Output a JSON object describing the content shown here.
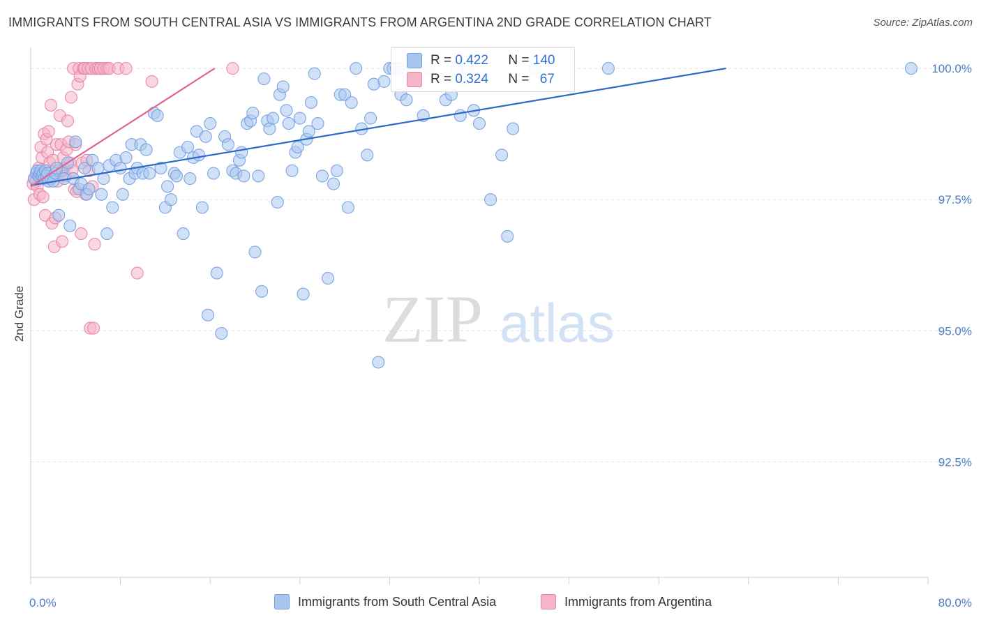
{
  "header": {
    "title": "IMMIGRANTS FROM SOUTH CENTRAL ASIA VS IMMIGRANTS FROM ARGENTINA 2ND GRADE CORRELATION CHART",
    "source": "Source: ZipAtlas.com"
  },
  "watermark": {
    "zip": "ZIP",
    "atlas": "atlas"
  },
  "stats": {
    "rows": [
      {
        "r_label": "R = ",
        "r_value": "0.422",
        "n_label": "N = ",
        "n_value": "140",
        "color": "#a9c6ef"
      },
      {
        "r_label": "R = ",
        "r_value": "0.324",
        "n_label": "N = ",
        "n_value": "67",
        "color": "#f5b5c9"
      }
    ]
  },
  "legend": {
    "items": [
      {
        "label": "Immigrants from South Central Asia",
        "color": "#a9c6ef"
      },
      {
        "label": "Immigrants from Argentina",
        "color": "#f5b5c9"
      }
    ]
  },
  "chart_data": {
    "type": "scatter",
    "title": "IMMIGRANTS FROM SOUTH CENTRAL ASIA VS IMMIGRANTS FROM ARGENTINA 2ND GRADE CORRELATION CHART",
    "xlabel": "",
    "ylabel": "2nd Grade",
    "xlim": [
      0,
      80
    ],
    "ylim": [
      90.3,
      100.4
    ],
    "x_tick_labels": [
      "0.0%",
      "80.0%"
    ],
    "y_ticks": [
      92.5,
      95.0,
      97.5,
      100.0
    ],
    "y_tick_labels": [
      "92.5%",
      "95.0%",
      "97.5%",
      "100.0%"
    ],
    "grid": true,
    "legend_position": "bottom",
    "series": [
      {
        "name": "Immigrants from South Central Asia",
        "color": "#6f9be0",
        "fill": "#a9c6ef",
        "trend": {
          "x": [
            0,
            62
          ],
          "y": [
            97.77,
            100.0
          ]
        },
        "points": [
          [
            0.3,
            97.9
          ],
          [
            0.5,
            98.0
          ],
          [
            0.6,
            98.05
          ],
          [
            0.7,
            97.95
          ],
          [
            0.8,
            98.0
          ],
          [
            0.9,
            98.05
          ],
          [
            1.0,
            97.95
          ],
          [
            1.1,
            98.0
          ],
          [
            1.2,
            97.9
          ],
          [
            1.3,
            98.05
          ],
          [
            1.4,
            97.95
          ],
          [
            1.5,
            98.0
          ],
          [
            1.6,
            97.85
          ],
          [
            1.8,
            97.9
          ],
          [
            2.0,
            97.85
          ],
          [
            2.2,
            98.0
          ],
          [
            2.5,
            97.2
          ],
          [
            2.8,
            98.05
          ],
          [
            3.0,
            97.9
          ],
          [
            3.3,
            98.2
          ],
          [
            3.5,
            97.0
          ],
          [
            3.8,
            97.9
          ],
          [
            4.0,
            98.6
          ],
          [
            4.3,
            97.7
          ],
          [
            4.5,
            97.8
          ],
          [
            4.8,
            98.1
          ],
          [
            5.0,
            97.6
          ],
          [
            5.2,
            97.7
          ],
          [
            5.5,
            98.25
          ],
          [
            6.0,
            98.1
          ],
          [
            6.3,
            97.6
          ],
          [
            6.5,
            97.9
          ],
          [
            6.8,
            96.85
          ],
          [
            7.0,
            98.15
          ],
          [
            7.3,
            97.35
          ],
          [
            7.6,
            98.25
          ],
          [
            8.0,
            98.1
          ],
          [
            8.2,
            97.6
          ],
          [
            8.5,
            98.3
          ],
          [
            8.8,
            97.9
          ],
          [
            9.0,
            98.55
          ],
          [
            9.3,
            98.0
          ],
          [
            9.5,
            98.1
          ],
          [
            9.8,
            98.55
          ],
          [
            10.0,
            98.0
          ],
          [
            10.3,
            98.45
          ],
          [
            10.6,
            98.0
          ],
          [
            11.0,
            99.15
          ],
          [
            11.3,
            99.1
          ],
          [
            11.6,
            98.1
          ],
          [
            12.0,
            97.35
          ],
          [
            12.2,
            97.75
          ],
          [
            12.5,
            97.5
          ],
          [
            12.8,
            98.0
          ],
          [
            13.0,
            97.95
          ],
          [
            13.3,
            98.4
          ],
          [
            13.6,
            96.85
          ],
          [
            14.0,
            98.5
          ],
          [
            14.2,
            97.9
          ],
          [
            14.5,
            98.3
          ],
          [
            14.8,
            98.8
          ],
          [
            15.0,
            98.35
          ],
          [
            15.3,
            97.35
          ],
          [
            15.6,
            98.7
          ],
          [
            15.8,
            95.3
          ],
          [
            16.0,
            98.95
          ],
          [
            16.3,
            98.0
          ],
          [
            16.6,
            96.1
          ],
          [
            17.0,
            94.95
          ],
          [
            17.3,
            98.7
          ],
          [
            17.6,
            98.55
          ],
          [
            18.0,
            98.05
          ],
          [
            18.3,
            98.0
          ],
          [
            18.6,
            98.25
          ],
          [
            18.8,
            98.4
          ],
          [
            19.0,
            97.95
          ],
          [
            19.3,
            98.95
          ],
          [
            19.6,
            99.0
          ],
          [
            19.8,
            99.15
          ],
          [
            20.0,
            96.5
          ],
          [
            20.3,
            97.95
          ],
          [
            20.6,
            95.75
          ],
          [
            20.8,
            99.8
          ],
          [
            21.1,
            99.0
          ],
          [
            21.3,
            98.85
          ],
          [
            21.6,
            99.05
          ],
          [
            22.0,
            97.45
          ],
          [
            22.2,
            99.5
          ],
          [
            22.5,
            99.65
          ],
          [
            22.8,
            99.2
          ],
          [
            23.0,
            98.95
          ],
          [
            23.3,
            98.05
          ],
          [
            23.6,
            98.4
          ],
          [
            23.8,
            98.5
          ],
          [
            24.0,
            99.05
          ],
          [
            24.3,
            95.7
          ],
          [
            24.6,
            98.65
          ],
          [
            24.8,
            98.8
          ],
          [
            25.0,
            99.35
          ],
          [
            25.3,
            99.9
          ],
          [
            25.6,
            98.95
          ],
          [
            26.0,
            97.95
          ],
          [
            26.5,
            96.0
          ],
          [
            27.0,
            97.8
          ],
          [
            27.3,
            98.05
          ],
          [
            27.6,
            99.5
          ],
          [
            28.0,
            99.5
          ],
          [
            28.3,
            97.35
          ],
          [
            28.6,
            99.35
          ],
          [
            29.0,
            100.0
          ],
          [
            29.5,
            98.85
          ],
          [
            30.0,
            98.35
          ],
          [
            30.3,
            99.05
          ],
          [
            30.6,
            99.7
          ],
          [
            31.5,
            99.75
          ],
          [
            31.0,
            94.4
          ],
          [
            32.0,
            100.0
          ],
          [
            32.3,
            100.0
          ],
          [
            32.6,
            100.0
          ],
          [
            32.8,
            100.0
          ],
          [
            33.0,
            99.5
          ],
          [
            33.5,
            99.4
          ],
          [
            34.0,
            100.0
          ],
          [
            35.0,
            99.1
          ],
          [
            35.5,
            100.0
          ],
          [
            37.0,
            99.4
          ],
          [
            37.5,
            99.5
          ],
          [
            38.0,
            100.0
          ],
          [
            38.3,
            99.1
          ],
          [
            39.0,
            100.0
          ],
          [
            39.5,
            99.2
          ],
          [
            40.0,
            98.95
          ],
          [
            41.0,
            97.5
          ],
          [
            42.0,
            98.35
          ],
          [
            42.5,
            96.8
          ],
          [
            43.0,
            98.85
          ],
          [
            45.0,
            100.0
          ],
          [
            51.5,
            100.0
          ],
          [
            78.5,
            100.0
          ],
          [
            2.3,
            98.1
          ]
        ]
      },
      {
        "name": "Immigrants from Argentina",
        "color": "#e77fa3",
        "fill": "#f5b5c9",
        "trend": {
          "x": [
            0,
            16.4
          ],
          "y": [
            97.75,
            100.0
          ]
        },
        "points": [
          [
            0.2,
            97.8
          ],
          [
            0.3,
            97.5
          ],
          [
            0.4,
            97.9
          ],
          [
            0.5,
            97.85
          ],
          [
            0.6,
            97.75
          ],
          [
            0.7,
            98.1
          ],
          [
            0.8,
            97.6
          ],
          [
            0.9,
            98.5
          ],
          [
            1.0,
            98.3
          ],
          [
            1.1,
            97.55
          ],
          [
            1.2,
            98.75
          ],
          [
            1.3,
            97.2
          ],
          [
            1.4,
            98.65
          ],
          [
            1.5,
            98.4
          ],
          [
            1.6,
            98.8
          ],
          [
            1.7,
            98.2
          ],
          [
            1.8,
            99.3
          ],
          [
            1.9,
            97.05
          ],
          [
            2.0,
            98.25
          ],
          [
            2.1,
            96.6
          ],
          [
            2.2,
            97.15
          ],
          [
            2.3,
            98.55
          ],
          [
            2.4,
            97.85
          ],
          [
            2.5,
            98.05
          ],
          [
            2.6,
            99.1
          ],
          [
            2.7,
            98.55
          ],
          [
            2.8,
            96.7
          ],
          [
            2.9,
            98.3
          ],
          [
            3.0,
            98.1
          ],
          [
            3.1,
            97.95
          ],
          [
            3.2,
            98.45
          ],
          [
            3.3,
            99.0
          ],
          [
            3.4,
            98.6
          ],
          [
            3.5,
            98.2
          ],
          [
            3.6,
            99.45
          ],
          [
            3.7,
            98.05
          ],
          [
            3.8,
            100.0
          ],
          [
            3.9,
            97.7
          ],
          [
            4.0,
            98.55
          ],
          [
            4.1,
            97.65
          ],
          [
            4.2,
            99.7
          ],
          [
            4.3,
            100.0
          ],
          [
            4.4,
            99.85
          ],
          [
            4.5,
            96.85
          ],
          [
            4.6,
            98.2
          ],
          [
            4.7,
            100.0
          ],
          [
            4.8,
            100.0
          ],
          [
            4.9,
            97.6
          ],
          [
            5.0,
            98.25
          ],
          [
            5.1,
            100.0
          ],
          [
            5.2,
            98.05
          ],
          [
            5.3,
            95.05
          ],
          [
            5.4,
            100.0
          ],
          [
            5.5,
            97.75
          ],
          [
            5.6,
            95.05
          ],
          [
            5.7,
            96.65
          ],
          [
            5.8,
            100.0
          ],
          [
            6.0,
            100.0
          ],
          [
            6.2,
            100.0
          ],
          [
            6.5,
            100.0
          ],
          [
            6.8,
            100.0
          ],
          [
            7.0,
            100.0
          ],
          [
            7.8,
            100.0
          ],
          [
            8.5,
            100.0
          ],
          [
            9.5,
            96.1
          ],
          [
            10.8,
            99.75
          ],
          [
            18.0,
            100.0
          ]
        ]
      }
    ]
  }
}
